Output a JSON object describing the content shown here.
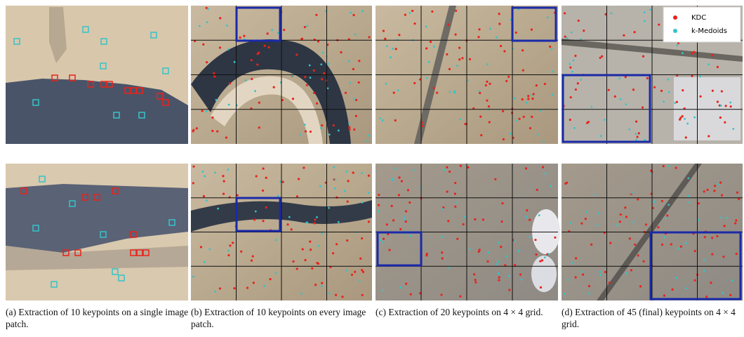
{
  "legend": {
    "items": [
      "KDC",
      "k-Medoids"
    ]
  },
  "captions": [
    "(a) Extraction of 10 keypoints on a single image patch.",
    "(b) Extraction of 10 keypoints on every image patch.",
    "(c) Extraction of 20 keypoints on 4 × 4 grid.",
    "(d) Extraction of 45 (final) keypoints on 4 × 4 grid."
  ]
}
